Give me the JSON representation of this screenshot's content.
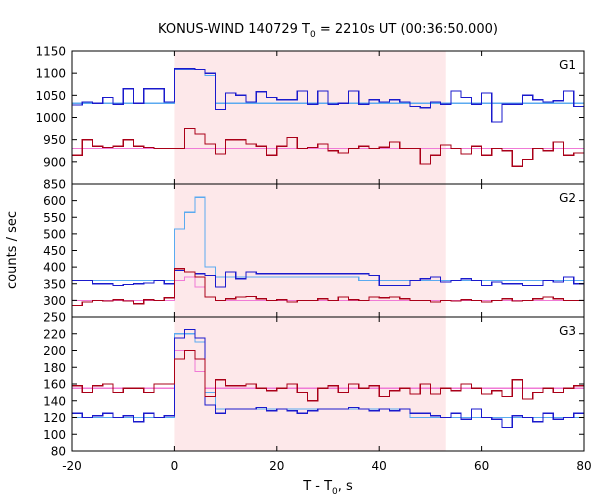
{
  "chart_data": {
    "type": "line",
    "title": "KONUS-WIND 140729 T0 = 2210s UT (00:36:50.000)",
    "title_parts": {
      "prefix": "KONUS-WIND 140729 T",
      "sub": "0",
      "suffix": " = 2210s UT (00:36:50.000)"
    },
    "xlabel": "T - T0, s",
    "xlabel_parts": {
      "prefix": "T - T",
      "sub": "0",
      "suffix": ", s"
    },
    "ylabel": "counts / sec",
    "xlim": [
      -20,
      80
    ],
    "x_ticks": [
      "-20",
      "0",
      "20",
      "40",
      "60",
      "80"
    ],
    "highlight_interval": [
      0,
      53
    ],
    "highlight_color": "#fde8ea",
    "colors": {
      "blue": "#1a1acc",
      "lightblue": "#5aaaf0",
      "red": "#aa0018",
      "pink": "#f07ad6"
    },
    "bin_edges": [
      -20,
      -18,
      -16,
      -14,
      -12,
      -10,
      -8,
      -6,
      -4,
      -2,
      0,
      2,
      4,
      6,
      8,
      10,
      12,
      14,
      16,
      18,
      20,
      22,
      24,
      26,
      28,
      30,
      32,
      34,
      36,
      38,
      40,
      42,
      44,
      46,
      48,
      50,
      52,
      54,
      56,
      58,
      60,
      62,
      64,
      66,
      68,
      70,
      72,
      74,
      76,
      78,
      80
    ],
    "panels": [
      {
        "label": "G1",
        "ylim": [
          850,
          1150
        ],
        "y_ticks": [
          850,
          900,
          950,
          1000,
          1050,
          1100,
          1150
        ],
        "series": [
          {
            "color": "blue",
            "values": [
              1028,
              1035,
              1032,
              1045,
              1030,
              1065,
              1032,
              1065,
              1065,
              1035,
              1110,
              1110,
              1108,
              1100,
              1018,
              1055,
              1050,
              1035,
              1058,
              1045,
              1040,
              1040,
              1060,
              1030,
              1060,
              1030,
              1032,
              1060,
              1030,
              1040,
              1035,
              1040,
              1035,
              1025,
              1022,
              1035,
              1030,
              1060,
              1045,
              1030,
              1055,
              990,
              1030,
              1030,
              1050,
              1040,
              1035,
              1038,
              1060,
              1025
            ]
          },
          {
            "color": "red",
            "values": [
              915,
              950,
              935,
              932,
              935,
              950,
              935,
              932,
              930,
              930,
              930,
              975,
              963,
              940,
              918,
              950,
              950,
              940,
              935,
              915,
              935,
              955,
              930,
              932,
              940,
              925,
              920,
              930,
              935,
              930,
              933,
              945,
              930,
              930,
              895,
              915,
              938,
              930,
              918,
              935,
              915,
              930,
              925,
              890,
              905,
              930,
              925,
              945,
              915,
              920
            ]
          },
          {
            "color": "lightblue",
            "values": [
              1032,
              1032,
              1032,
              1032,
              1032,
              1032,
              1032,
              1032,
              1032,
              1032,
              1108,
              1108,
              1108,
              1095,
              1032,
              1032,
              1032,
              1032,
              1032,
              1032,
              1032,
              1032,
              1032,
              1032,
              1032,
              1032,
              1032,
              1032,
              1032,
              1032,
              1032,
              1032,
              1032,
              1032,
              1032,
              1032,
              1032,
              1032,
              1032,
              1032,
              1032,
              1032,
              1032,
              1032,
              1032,
              1032,
              1032,
              1032,
              1032,
              1032
            ]
          },
          {
            "color": "pink",
            "values": [
              930,
              930,
              930,
              930,
              930,
              930,
              930,
              930,
              930,
              930,
              930,
              930,
              930,
              930,
              930,
              930,
              930,
              930,
              930,
              930,
              930,
              930,
              930,
              930,
              930,
              930,
              930,
              930,
              930,
              930,
              930,
              930,
              930,
              930,
              930,
              930,
              930,
              930,
              930,
              930,
              930,
              930,
              930,
              930,
              930,
              930,
              930,
              930,
              930,
              930
            ]
          }
        ]
      },
      {
        "label": "G2",
        "ylim": [
          250,
          650
        ],
        "y_ticks": [
          250,
          300,
          350,
          400,
          450,
          500,
          550,
          600
        ],
        "series": [
          {
            "color": "blue",
            "values": [
              360,
              360,
              350,
              350,
              345,
              348,
              350,
              352,
              360,
              350,
              390,
              385,
              380,
              375,
              340,
              385,
              365,
              385,
              380,
              380,
              380,
              380,
              380,
              380,
              380,
              380,
              380,
              380,
              380,
              375,
              345,
              345,
              345,
              360,
              365,
              370,
              355,
              360,
              365,
              360,
              345,
              355,
              350,
              350,
              345,
              345,
              360,
              355,
              370,
              350
            ]
          },
          {
            "color": "red",
            "values": [
              285,
              295,
              300,
              298,
              302,
              298,
              290,
              302,
              300,
              308,
              395,
              385,
              370,
              310,
              300,
              305,
              310,
              312,
              305,
              300,
              302,
              295,
              300,
              300,
              305,
              300,
              310,
              302,
              300,
              310,
              308,
              310,
              305,
              300,
              300,
              295,
              300,
              298,
              302,
              300,
              295,
              300,
              305,
              298,
              300,
              305,
              310,
              305,
              300,
              300
            ]
          },
          {
            "color": "lightblue",
            "values": [
              360,
              360,
              360,
              360,
              360,
              360,
              360,
              360,
              360,
              360,
              515,
              565,
              610,
              400,
              370,
              370,
              370,
              370,
              370,
              370,
              370,
              370,
              370,
              370,
              370,
              370,
              370,
              370,
              360,
              360,
              360,
              360,
              360,
              360,
              360,
              360,
              360,
              360,
              360,
              360,
              360,
              360,
              360,
              360,
              360,
              360,
              360,
              360,
              360,
              360
            ]
          },
          {
            "color": "pink",
            "values": [
              300,
              300,
              300,
              300,
              300,
              300,
              300,
              300,
              300,
              300,
              360,
              370,
              340,
              310,
              300,
              300,
              300,
              300,
              300,
              300,
              300,
              300,
              300,
              300,
              300,
              300,
              300,
              300,
              300,
              300,
              300,
              300,
              300,
              300,
              300,
              300,
              300,
              300,
              300,
              300,
              300,
              300,
              300,
              300,
              300,
              300,
              300,
              300,
              300,
              300
            ]
          }
        ]
      },
      {
        "label": "G3",
        "ylim": [
          80,
          240
        ],
        "y_ticks": [
          80,
          100,
          120,
          140,
          160,
          180,
          200,
          220
        ],
        "series": [
          {
            "color": "blue",
            "values": [
              125,
              120,
              122,
              125,
              120,
              122,
              115,
              125,
              120,
              122,
              215,
              225,
              215,
              135,
              125,
              130,
              130,
              130,
              132,
              128,
              130,
              128,
              125,
              128,
              130,
              130,
              130,
              132,
              130,
              128,
              130,
              128,
              130,
              125,
              125,
              122,
              120,
              125,
              118,
              130,
              120,
              118,
              108,
              122,
              120,
              115,
              125,
              118,
              120,
              125
            ]
          },
          {
            "color": "red",
            "values": [
              158,
              150,
              158,
              160,
              150,
              155,
              155,
              150,
              160,
              160,
              190,
              200,
              190,
              145,
              165,
              158,
              158,
              160,
              155,
              152,
              155,
              160,
              150,
              140,
              155,
              158,
              150,
              160,
              155,
              158,
              145,
              152,
              155,
              148,
              160,
              148,
              155,
              152,
              160,
              155,
              148,
              152,
              145,
              165,
              142,
              150,
              155,
              150,
              155,
              158
            ]
          },
          {
            "color": "lightblue",
            "values": [
              120,
              120,
              120,
              120,
              120,
              120,
              120,
              120,
              120,
              120,
              220,
              220,
              210,
              150,
              130,
              130,
              130,
              130,
              130,
              130,
              130,
              130,
              130,
              130,
              130,
              130,
              130,
              130,
              130,
              130,
              130,
              130,
              130,
              120,
              120,
              120,
              120,
              120,
              120,
              120,
              120,
              120,
              120,
              120,
              120,
              120,
              120,
              120,
              120,
              120
            ]
          },
          {
            "color": "pink",
            "values": [
              155,
              155,
              155,
              155,
              155,
              155,
              155,
              155,
              155,
              155,
              200,
              200,
              175,
              155,
              155,
              155,
              155,
              155,
              155,
              155,
              155,
              155,
              155,
              155,
              155,
              155,
              155,
              155,
              155,
              155,
              155,
              155,
              155,
              155,
              155,
              155,
              155,
              155,
              155,
              155,
              155,
              155,
              155,
              155,
              155,
              155,
              155,
              155,
              155,
              155
            ]
          }
        ]
      }
    ]
  }
}
